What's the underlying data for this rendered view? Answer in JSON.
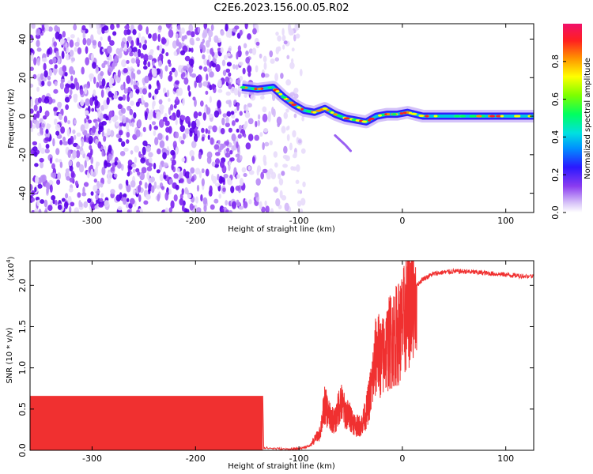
{
  "title": "C2E6.2023.156.00.05.R02",
  "colorbar": {
    "label": "Normalized spectral amplitude",
    "range": [
      0,
      1
    ],
    "ticks": [
      "0.0",
      "0.2",
      "0.4",
      "0.6",
      "0.8"
    ],
    "tick_values": [
      0,
      0.2,
      0.4,
      0.6,
      0.8
    ]
  },
  "chart_data": [
    {
      "type": "heatmap",
      "xlabel": "Height of straight line (km)",
      "ylabel": "Frequency (Hz)",
      "xlim": [
        -360,
        127
      ],
      "ylim": [
        -50,
        48
      ],
      "xticks": [
        -300,
        -200,
        -100,
        0,
        100
      ],
      "yticks": [
        -40,
        -20,
        0,
        20,
        40
      ],
      "noise_region_x": [
        -360,
        -105
      ],
      "signal_trace": {
        "x": [
          -155,
          -140,
          -125,
          -115,
          -105,
          -95,
          -85,
          -75,
          -65,
          -55,
          -45,
          -35,
          -25,
          -15,
          -5,
          5,
          20,
          40,
          60,
          80,
          100,
          127
        ],
        "freq": [
          15,
          14,
          15,
          10,
          6,
          3,
          2,
          4,
          1,
          -1,
          -2,
          -3,
          0,
          1,
          1,
          2,
          0,
          0,
          0,
          0,
          0,
          0
        ]
      },
      "secondary_trace": {
        "x": [
          -65,
          -55,
          -50
        ],
        "freq": [
          -10,
          -15,
          -18
        ]
      }
    },
    {
      "type": "line",
      "xlabel": "Height of straight line (km)",
      "ylabel": "SNR (10 * v/v)",
      "yscale_label": "(x10",
      "yscale_exp": "4",
      "yscale_close": ")",
      "xlim": [
        -360,
        127
      ],
      "ylim": [
        0,
        2.3
      ],
      "xticks": [
        -300,
        -200,
        -100,
        0,
        100
      ],
      "yticks": [
        0.0,
        0.5,
        1.0,
        1.5,
        2.0
      ],
      "series": [
        {
          "color": "#f03030",
          "x": [
            -360,
            -135,
            -134,
            -110,
            -100,
            -90,
            -80,
            -75,
            -70,
            -65,
            -60,
            -55,
            -50,
            -45,
            -40,
            -35,
            -30,
            -25,
            -20,
            -15,
            -10,
            -5,
            0,
            5,
            10,
            20,
            30,
            40,
            50,
            60,
            70,
            80,
            90,
            100,
            110,
            127
          ],
          "y": [
            0.66,
            0.66,
            0.03,
            0.01,
            0.02,
            0.05,
            0.2,
            0.55,
            0.4,
            0.35,
            0.6,
            0.45,
            0.4,
            0.3,
            0.3,
            0.45,
            0.75,
            1.2,
            1.1,
            1.25,
            1.35,
            1.4,
            1.5,
            1.7,
            1.95,
            2.08,
            2.14,
            2.16,
            2.17,
            2.17,
            2.16,
            2.15,
            2.14,
            2.13,
            2.12,
            2.11
          ]
        }
      ]
    }
  ]
}
